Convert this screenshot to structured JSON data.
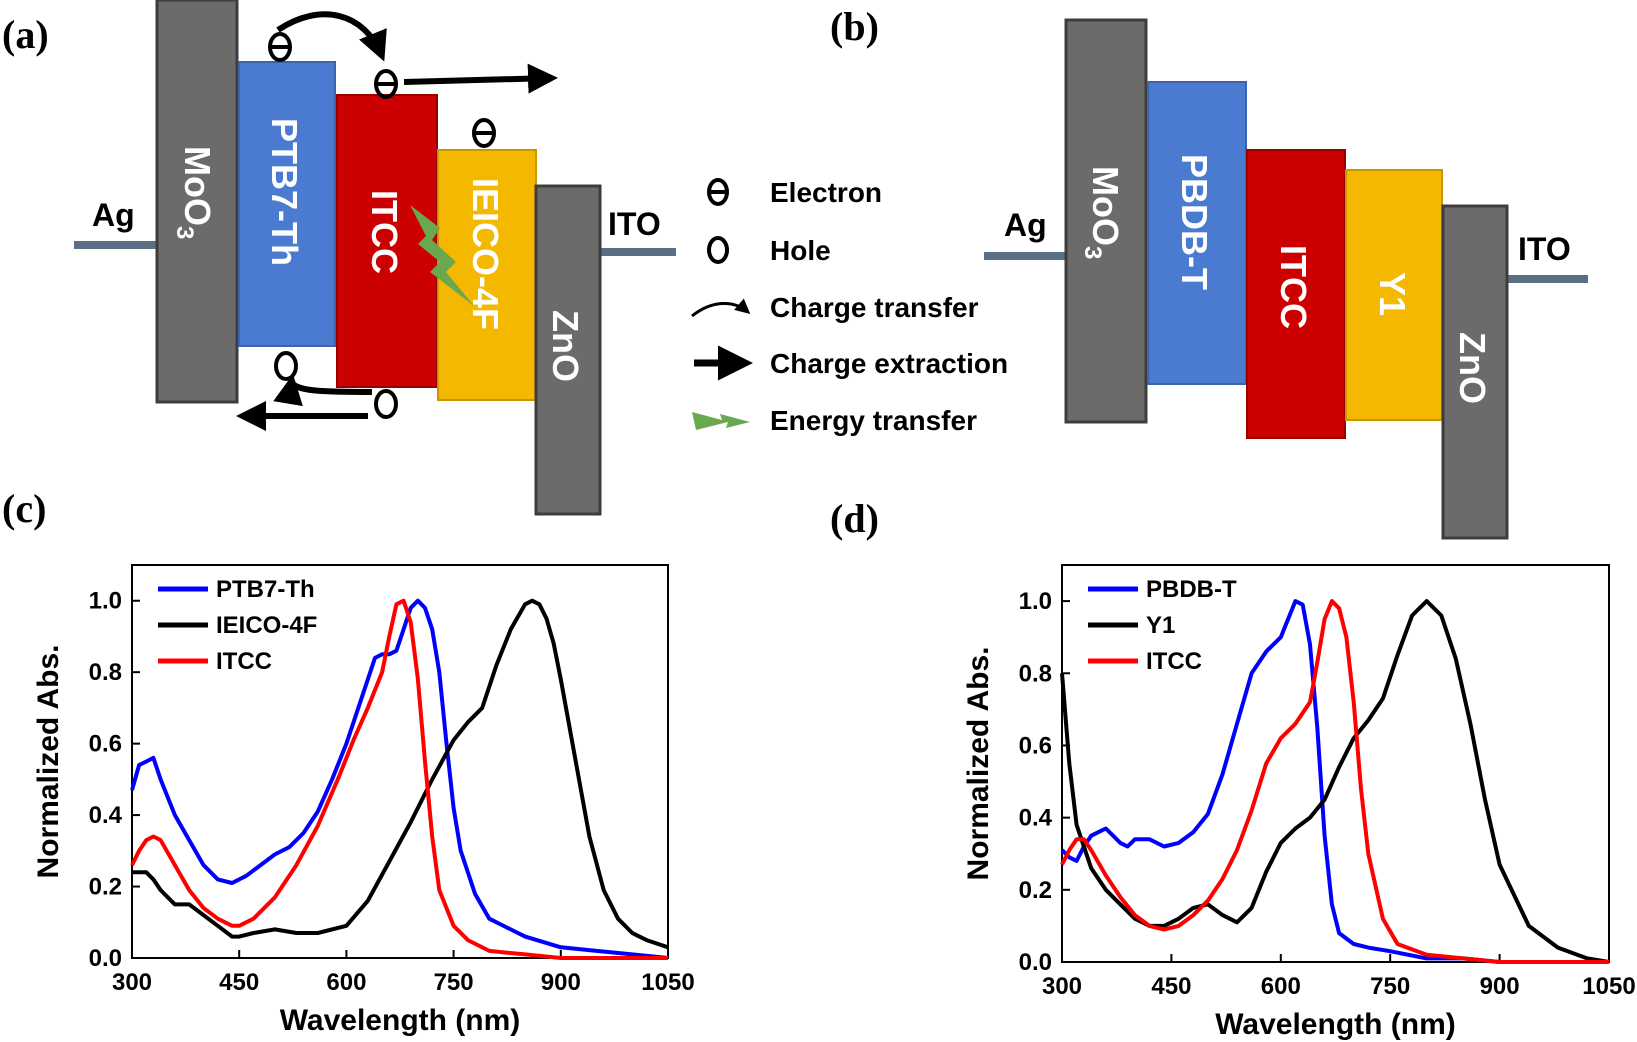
{
  "panels": {
    "a": {
      "label": "(a)",
      "electrode_left": "Ag",
      "electrode_right": "ITO",
      "layers": [
        {
          "name": "MoO3",
          "text": "MoO",
          "sub": "3",
          "color": "#6d6a6a"
        },
        {
          "name": "PTB7-Th",
          "text": "PTB7-Th",
          "color": "#4b7bd0"
        },
        {
          "name": "ITCC",
          "text": "ITCC",
          "color": "#cc0000"
        },
        {
          "name": "IEICO-4F",
          "text": "IEICO-4F",
          "color": "#f4b800"
        },
        {
          "name": "ZnO",
          "text": "ZnO",
          "color": "#6d6a6a"
        }
      ]
    },
    "b": {
      "label": "(b)",
      "electrode_left": "Ag",
      "electrode_right": "ITO",
      "layers": [
        {
          "name": "MoO3",
          "text": "MoO",
          "sub": "3",
          "color": "#6d6a6a"
        },
        {
          "name": "PBDB-T",
          "text": "PBDB-T",
          "color": "#4b7bd0"
        },
        {
          "name": "ITCC",
          "text": "ITCC",
          "color": "#cc0000"
        },
        {
          "name": "Y1",
          "text": "Y1",
          "color": "#f4b800"
        },
        {
          "name": "ZnO",
          "text": "ZnO",
          "color": "#6d6a6a"
        }
      ]
    },
    "c": {
      "label": "(c)"
    },
    "d": {
      "label": "(d)"
    }
  },
  "key": {
    "electron": "Electron",
    "hole": "Hole",
    "charge_transfer": "Charge transfer",
    "charge_extraction": "Charge extraction",
    "energy_transfer": "Energy transfer",
    "energy_color": "#6aa84f"
  },
  "chart_data": [
    {
      "type": "line",
      "panel": "c",
      "xlabel": "Wavelength (nm)",
      "ylabel": "Normalized Abs.",
      "xlim": [
        300,
        1050
      ],
      "ylim": [
        0,
        1.1
      ],
      "xticks": [
        300,
        450,
        600,
        750,
        900,
        1050
      ],
      "yticks": [
        0.0,
        0.2,
        0.4,
        0.6,
        0.8,
        1.0
      ],
      "ytick_labels": [
        "0.0",
        "0.2",
        "0.4",
        "0.6",
        "0.8",
        "1.0"
      ],
      "legend_position": "top-left",
      "series": [
        {
          "name": "PTB7-Th",
          "color": "#0000ff",
          "x": [
            300,
            310,
            320,
            330,
            340,
            360,
            380,
            400,
            420,
            440,
            460,
            480,
            500,
            520,
            540,
            560,
            580,
            600,
            620,
            640,
            650,
            660,
            670,
            680,
            690,
            700,
            710,
            720,
            730,
            740,
            750,
            760,
            780,
            800,
            850,
            900,
            950,
            1000,
            1050
          ],
          "y": [
            0.47,
            0.54,
            0.55,
            0.56,
            0.5,
            0.4,
            0.33,
            0.26,
            0.22,
            0.21,
            0.23,
            0.26,
            0.29,
            0.31,
            0.35,
            0.41,
            0.5,
            0.6,
            0.72,
            0.84,
            0.85,
            0.85,
            0.86,
            0.92,
            0.98,
            1.0,
            0.98,
            0.92,
            0.8,
            0.6,
            0.42,
            0.3,
            0.18,
            0.11,
            0.06,
            0.03,
            0.02,
            0.01,
            0.0
          ]
        },
        {
          "name": "IEICO-4F",
          "color": "#000000",
          "x": [
            300,
            320,
            330,
            340,
            360,
            380,
            400,
            420,
            440,
            450,
            470,
            500,
            530,
            560,
            600,
            630,
            660,
            690,
            720,
            750,
            770,
            790,
            810,
            830,
            850,
            860,
            870,
            880,
            890,
            900,
            920,
            940,
            960,
            980,
            1000,
            1020,
            1050
          ],
          "y": [
            0.24,
            0.24,
            0.22,
            0.19,
            0.15,
            0.15,
            0.12,
            0.09,
            0.06,
            0.06,
            0.07,
            0.08,
            0.07,
            0.07,
            0.09,
            0.16,
            0.27,
            0.38,
            0.5,
            0.61,
            0.66,
            0.7,
            0.82,
            0.92,
            0.99,
            1.0,
            0.99,
            0.95,
            0.88,
            0.78,
            0.56,
            0.34,
            0.19,
            0.11,
            0.07,
            0.05,
            0.03
          ]
        },
        {
          "name": "ITCC",
          "color": "#ff0000",
          "x": [
            300,
            310,
            320,
            330,
            340,
            360,
            380,
            400,
            420,
            440,
            450,
            470,
            500,
            530,
            560,
            590,
            610,
            630,
            650,
            660,
            670,
            680,
            690,
            700,
            710,
            720,
            730,
            750,
            770,
            800,
            850,
            900,
            1050
          ],
          "y": [
            0.26,
            0.3,
            0.33,
            0.34,
            0.33,
            0.26,
            0.19,
            0.14,
            0.11,
            0.09,
            0.09,
            0.11,
            0.17,
            0.26,
            0.37,
            0.51,
            0.61,
            0.7,
            0.8,
            0.9,
            0.99,
            1.0,
            0.94,
            0.78,
            0.55,
            0.34,
            0.19,
            0.09,
            0.05,
            0.02,
            0.01,
            0.0,
            0.0
          ]
        }
      ]
    },
    {
      "type": "line",
      "panel": "d",
      "xlabel": "Wavelength (nm)",
      "ylabel": "Normalized Abs.",
      "xlim": [
        300,
        1050
      ],
      "ylim": [
        0,
        1.1
      ],
      "xticks": [
        300,
        450,
        600,
        750,
        900,
        1050
      ],
      "yticks": [
        0.0,
        0.2,
        0.4,
        0.6,
        0.8,
        1.0
      ],
      "ytick_labels": [
        "0.0",
        "0.2",
        "0.4",
        "0.6",
        "0.8",
        "1.0"
      ],
      "legend_position": "top-left",
      "series": [
        {
          "name": "PBDB-T",
          "color": "#0000ff",
          "x": [
            300,
            310,
            320,
            330,
            340,
            350,
            360,
            370,
            380,
            390,
            400,
            420,
            440,
            460,
            480,
            500,
            520,
            540,
            560,
            580,
            600,
            610,
            620,
            630,
            640,
            650,
            660,
            670,
            680,
            700,
            720,
            750,
            800,
            850,
            900,
            1000,
            1050
          ],
          "y": [
            0.31,
            0.29,
            0.28,
            0.32,
            0.35,
            0.36,
            0.37,
            0.35,
            0.33,
            0.32,
            0.34,
            0.34,
            0.32,
            0.33,
            0.36,
            0.41,
            0.52,
            0.66,
            0.8,
            0.86,
            0.9,
            0.95,
            1.0,
            0.99,
            0.88,
            0.65,
            0.35,
            0.16,
            0.08,
            0.05,
            0.04,
            0.03,
            0.01,
            0.01,
            0.0,
            0.0,
            0.0
          ]
        },
        {
          "name": "Y1",
          "color": "#000000",
          "x": [
            300,
            310,
            320,
            340,
            360,
            380,
            400,
            420,
            440,
            460,
            480,
            500,
            520,
            540,
            560,
            580,
            600,
            620,
            640,
            660,
            680,
            700,
            720,
            740,
            760,
            780,
            800,
            820,
            840,
            860,
            880,
            900,
            940,
            980,
            1020,
            1050
          ],
          "y": [
            0.8,
            0.55,
            0.38,
            0.26,
            0.2,
            0.16,
            0.12,
            0.1,
            0.1,
            0.12,
            0.15,
            0.16,
            0.13,
            0.11,
            0.15,
            0.25,
            0.33,
            0.37,
            0.4,
            0.45,
            0.54,
            0.62,
            0.67,
            0.73,
            0.85,
            0.96,
            1.0,
            0.96,
            0.84,
            0.66,
            0.45,
            0.27,
            0.1,
            0.04,
            0.01,
            0.0
          ]
        },
        {
          "name": "ITCC",
          "color": "#ff0000",
          "x": [
            300,
            310,
            320,
            330,
            340,
            360,
            380,
            400,
            420,
            440,
            460,
            480,
            500,
            520,
            540,
            560,
            580,
            600,
            620,
            640,
            650,
            660,
            670,
            680,
            690,
            700,
            710,
            720,
            740,
            760,
            800,
            850,
            900,
            1050
          ],
          "y": [
            0.27,
            0.31,
            0.34,
            0.34,
            0.31,
            0.24,
            0.18,
            0.13,
            0.1,
            0.09,
            0.1,
            0.13,
            0.17,
            0.23,
            0.31,
            0.42,
            0.55,
            0.62,
            0.66,
            0.72,
            0.83,
            0.95,
            1.0,
            0.98,
            0.9,
            0.72,
            0.48,
            0.3,
            0.12,
            0.05,
            0.02,
            0.01,
            0.0,
            0.0
          ]
        }
      ]
    }
  ]
}
